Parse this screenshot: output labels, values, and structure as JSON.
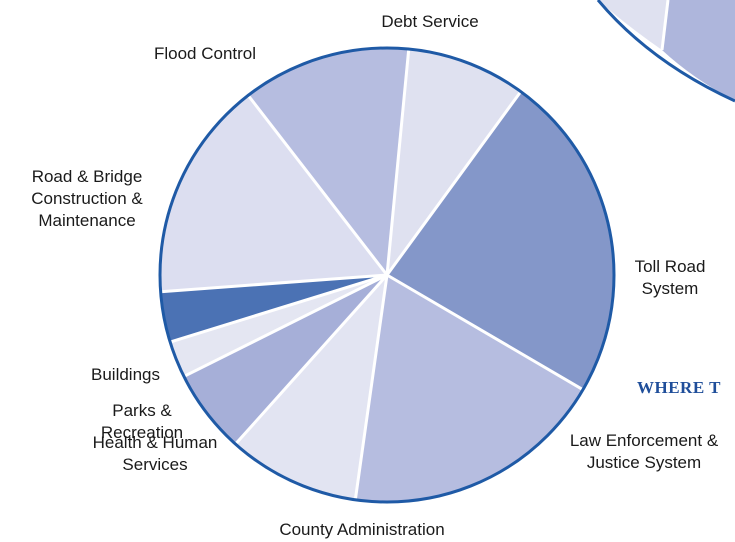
{
  "chart_data": {
    "type": "pie",
    "headline": "WHERE T",
    "slices": [
      {
        "label": "Debt Service",
        "lines": [
          "Debt Service"
        ],
        "value": 8.5,
        "color": "#dfe1f0"
      },
      {
        "label": "Toll Road System",
        "lines": [
          "Toll Road",
          "System"
        ],
        "value": 23.4,
        "color": "#8497c9"
      },
      {
        "label": "Law Enforcement & Justice System",
        "lines": [
          "Law Enforcement &",
          "Justice System"
        ],
        "value": 18.8,
        "color": "#b6bde0"
      },
      {
        "label": "County Administration",
        "lines": [
          "County Administration"
        ],
        "value": 9.4,
        "color": "#e2e4f2"
      },
      {
        "label": "Health & Human Services",
        "lines": [
          "Health & Human",
          "Services"
        ],
        "value": 6.0,
        "color": "#a6afd8"
      },
      {
        "label": "Parks & Recreation",
        "lines": [
          "Parks &",
          "Recreation"
        ],
        "value": 2.6,
        "color": "#e4e6f2"
      },
      {
        "label": "Buildings",
        "lines": [
          "Buildings"
        ],
        "value": 3.6,
        "color": "#4b72b4"
      },
      {
        "label": "Road & Bridge Construction & Maintenance",
        "lines": [
          "Road & Bridge",
          "Construction &",
          "Maintenance"
        ],
        "value": 15.7,
        "color": "#dcdef0"
      },
      {
        "label": "Flood Control",
        "lines": [
          "Flood Control"
        ],
        "value": 12.0,
        "color": "#b6bde0"
      }
    ],
    "legend": "none"
  }
}
